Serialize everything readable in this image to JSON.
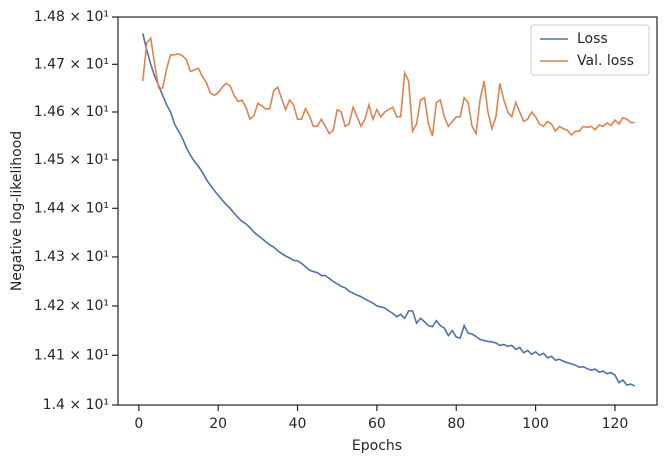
{
  "chart_data": {
    "type": "line",
    "xlabel": "Epochs",
    "ylabel": "Negative log-likelihood",
    "x": [
      1,
      2,
      3,
      4,
      5,
      6,
      7,
      8,
      9,
      10,
      11,
      12,
      13,
      14,
      15,
      16,
      17,
      18,
      19,
      20,
      21,
      22,
      23,
      24,
      25,
      26,
      27,
      28,
      29,
      30,
      31,
      32,
      33,
      34,
      35,
      36,
      37,
      38,
      39,
      40,
      41,
      42,
      43,
      44,
      45,
      46,
      47,
      48,
      49,
      50,
      51,
      52,
      53,
      54,
      55,
      56,
      57,
      58,
      59,
      60,
      61,
      62,
      63,
      64,
      65,
      66,
      67,
      68,
      69,
      70,
      71,
      72,
      73,
      74,
      75,
      76,
      77,
      78,
      79,
      80,
      81,
      82,
      83,
      84,
      85,
      86,
      87,
      88,
      89,
      90,
      91,
      92,
      93,
      94,
      95,
      96,
      97,
      98,
      99,
      100,
      101,
      102,
      103,
      104,
      105,
      106,
      107,
      108,
      109,
      110,
      111,
      112,
      113,
      114,
      115,
      116,
      117,
      118,
      119,
      120,
      121,
      122,
      123,
      124,
      125
    ],
    "series": [
      {
        "name": "Loss",
        "color": "#4c72b0",
        "values": [
          14.765,
          14.73,
          14.7,
          14.675,
          14.655,
          14.635,
          14.615,
          14.6,
          14.575,
          14.56,
          14.545,
          14.525,
          14.51,
          14.497,
          14.487,
          14.475,
          14.46,
          14.448,
          14.437,
          14.427,
          14.417,
          14.408,
          14.4,
          14.39,
          14.381,
          14.373,
          14.368,
          14.36,
          14.351,
          14.344,
          14.338,
          14.331,
          14.325,
          14.32,
          14.313,
          14.307,
          14.302,
          14.298,
          14.293,
          14.292,
          14.287,
          14.28,
          14.273,
          14.27,
          14.268,
          14.262,
          14.262,
          14.256,
          14.25,
          14.245,
          14.24,
          14.237,
          14.23,
          14.226,
          14.222,
          14.219,
          14.214,
          14.21,
          14.206,
          14.2,
          14.198,
          14.196,
          14.19,
          14.185,
          14.178,
          14.183,
          14.175,
          14.19,
          14.19,
          14.165,
          14.175,
          14.168,
          14.16,
          14.158,
          14.17,
          14.16,
          14.155,
          14.14,
          14.15,
          14.137,
          14.135,
          14.16,
          14.145,
          14.143,
          14.138,
          14.132,
          14.13,
          14.128,
          14.127,
          14.125,
          14.12,
          14.122,
          14.118,
          14.12,
          14.112,
          14.116,
          14.105,
          14.11,
          14.102,
          14.107,
          14.1,
          14.104,
          14.095,
          14.098,
          14.09,
          14.092,
          14.088,
          14.085,
          14.083,
          14.08,
          14.076,
          14.077,
          14.073,
          14.07,
          14.072,
          14.066,
          14.068,
          14.063,
          14.065,
          14.06,
          14.045,
          14.05,
          14.04,
          14.042,
          14.038
        ]
      },
      {
        "name": "Val. loss",
        "color": "#dd8452",
        "values": [
          14.665,
          14.745,
          14.755,
          14.7,
          14.65,
          14.65,
          14.69,
          14.72,
          14.72,
          14.722,
          14.718,
          14.71,
          14.685,
          14.688,
          14.692,
          14.675,
          14.662,
          14.64,
          14.635,
          14.64,
          14.652,
          14.66,
          14.655,
          14.635,
          14.622,
          14.625,
          14.61,
          14.585,
          14.592,
          14.618,
          14.613,
          14.606,
          14.607,
          14.645,
          14.652,
          14.628,
          14.605,
          14.625,
          14.615,
          14.585,
          14.585,
          14.607,
          14.592,
          14.57,
          14.57,
          14.585,
          14.57,
          14.555,
          14.562,
          14.605,
          14.6,
          14.57,
          14.575,
          14.61,
          14.59,
          14.57,
          14.585,
          14.615,
          14.585,
          14.605,
          14.59,
          14.6,
          14.605,
          14.61,
          14.59,
          14.59,
          14.682,
          14.665,
          14.56,
          14.575,
          14.625,
          14.63,
          14.575,
          14.55,
          14.62,
          14.625,
          14.59,
          14.57,
          14.58,
          14.59,
          14.59,
          14.63,
          14.62,
          14.57,
          14.555,
          14.625,
          14.665,
          14.6,
          14.565,
          14.59,
          14.66,
          14.625,
          14.6,
          14.59,
          14.62,
          14.6,
          14.58,
          14.585,
          14.6,
          14.59,
          14.575,
          14.57,
          14.58,
          14.575,
          14.56,
          14.57,
          14.565,
          14.562,
          14.552,
          14.56,
          14.56,
          14.57,
          14.568,
          14.57,
          14.563,
          14.573,
          14.57,
          14.577,
          14.572,
          14.583,
          14.575,
          14.588,
          14.585,
          14.578,
          14.578
        ]
      }
    ],
    "xlim": [
      -5.25,
      130.6
    ],
    "xticks": [
      0,
      20,
      40,
      60,
      80,
      100,
      120
    ],
    "ylim": [
      14.0,
      14.8
    ],
    "yscale": "log",
    "yticks": [
      {
        "value": 14.0,
        "label": "1.4 × 10¹"
      },
      {
        "value": 14.1,
        "label": "1.41 × 10¹"
      },
      {
        "value": 14.2,
        "label": "1.42 × 10¹"
      },
      {
        "value": 14.3,
        "label": "1.43 × 10¹"
      },
      {
        "value": 14.4,
        "label": "1.44 × 10¹"
      },
      {
        "value": 14.5,
        "label": "1.45 × 10¹"
      },
      {
        "value": 14.6,
        "label": "1.46 × 10¹"
      },
      {
        "value": 14.7,
        "label": "1.47 × 10¹"
      },
      {
        "value": 14.8,
        "label": "1.48 × 10¹"
      }
    ],
    "legend": "upper right",
    "grid": false
  }
}
